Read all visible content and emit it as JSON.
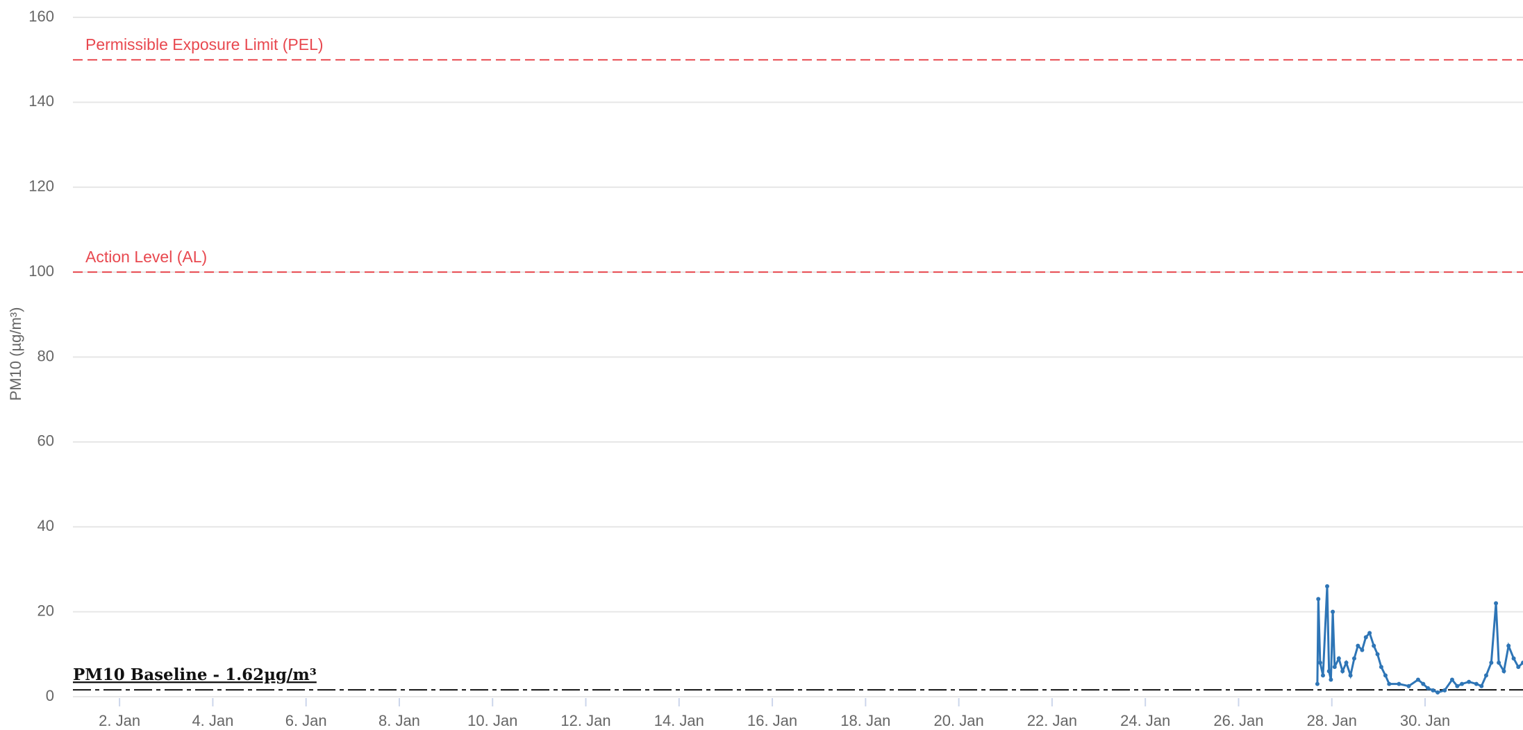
{
  "chart_data": {
    "type": "line",
    "y_axis_label": "PM10 (µg/m³)",
    "xlim": [
      1,
      32.1
    ],
    "ylim": [
      0,
      160
    ],
    "yticks": [
      0,
      20,
      40,
      60,
      80,
      100,
      120,
      140,
      160
    ],
    "xticks": [
      {
        "value": 2,
        "label": "2. Jan"
      },
      {
        "value": 4,
        "label": "4. Jan"
      },
      {
        "value": 6,
        "label": "6. Jan"
      },
      {
        "value": 8,
        "label": "8. Jan"
      },
      {
        "value": 10,
        "label": "10. Jan"
      },
      {
        "value": 12,
        "label": "12. Jan"
      },
      {
        "value": 14,
        "label": "14. Jan"
      },
      {
        "value": 16,
        "label": "16. Jan"
      },
      {
        "value": 18,
        "label": "18. Jan"
      },
      {
        "value": 20,
        "label": "20. Jan"
      },
      {
        "value": 22,
        "label": "22. Jan"
      },
      {
        "value": 24,
        "label": "24. Jan"
      },
      {
        "value": 26,
        "label": "26. Jan"
      },
      {
        "value": 28,
        "label": "28. Jan"
      },
      {
        "value": 30,
        "label": "30. Jan"
      }
    ],
    "grid": true,
    "reference_lines": [
      {
        "label": "Permissible Exposure Limit (PEL)",
        "value": 150,
        "color": "#e8484f",
        "style": "dashed"
      },
      {
        "label": "Action Level (AL)",
        "value": 100,
        "color": "#e8484f",
        "style": "dashed"
      },
      {
        "label": "PM10 Baseline - 1.62µg/m³",
        "value": 1.62,
        "color": "#111111",
        "style": "dashdot"
      }
    ],
    "series": [
      {
        "name": "PM10",
        "color": "#2e75b6",
        "x": [
          27.69,
          27.71,
          27.75,
          27.81,
          27.9,
          27.94,
          27.98,
          28.02,
          28.06,
          28.15,
          28.23,
          28.31,
          28.4,
          28.48,
          28.56,
          28.65,
          28.73,
          28.81,
          28.9,
          28.98,
          29.06,
          29.15,
          29.23,
          29.44,
          29.65,
          29.85,
          29.96,
          30.06,
          30.17,
          30.27,
          30.42,
          30.58,
          30.69,
          30.79,
          30.94,
          31.1,
          31.21,
          31.31,
          31.42,
          31.52,
          31.58,
          31.69,
          31.79,
          31.9,
          32.0,
          32.1
        ],
        "values": [
          3,
          23,
          8,
          5,
          26,
          6,
          4,
          20,
          7,
          9,
          6,
          8,
          5,
          9,
          12,
          11,
          14,
          15,
          12,
          10,
          7,
          5,
          3,
          3,
          2.5,
          4,
          3,
          2,
          1.5,
          1,
          1.5,
          4,
          2.5,
          3,
          3.5,
          3,
          2.5,
          5,
          8,
          22,
          8,
          6,
          12,
          9,
          7,
          8
        ]
      }
    ]
  }
}
